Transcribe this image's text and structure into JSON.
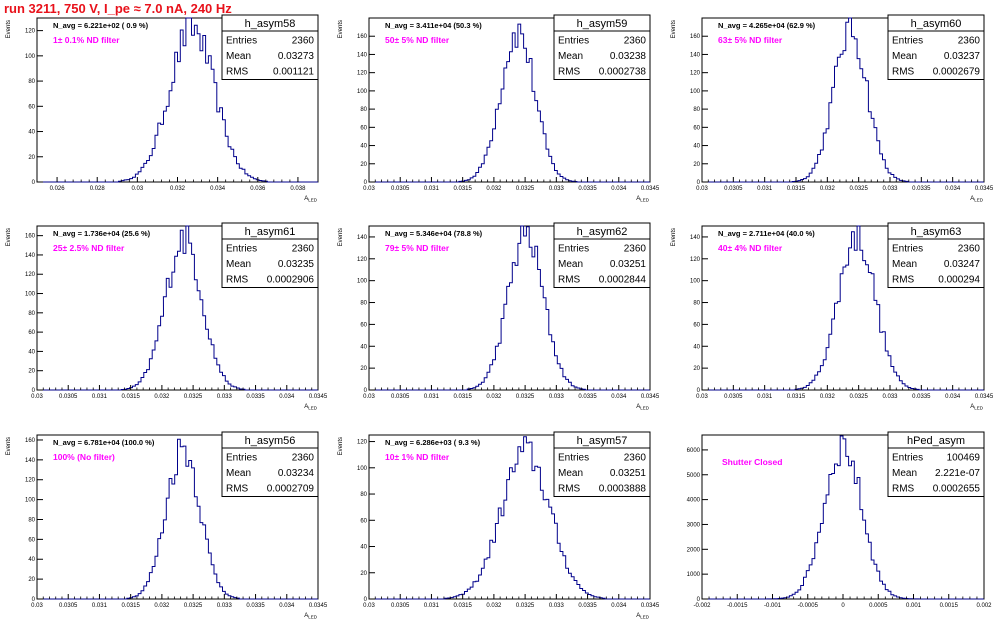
{
  "page": {
    "title": "run 3211,   750 V, I_pe ≈ 7.0 nA, 240 Hz"
  },
  "colors": {
    "histogram": "#00008b",
    "filter_label": "#ff00ff",
    "title": "#e8121b",
    "axes": "#000000"
  },
  "chart_data": [
    {
      "type": "histogram",
      "name": "h_asym58",
      "navg_label": "N_avg = 6.221e+02 ( 0.9 %)",
      "filter_label": "1± 0.1% ND filter",
      "stats": [
        [
          "Entries",
          "2360"
        ],
        [
          "Mean",
          "0.03273"
        ],
        [
          "RMS",
          "0.001121"
        ]
      ],
      "ylabel": "Events",
      "xlabel": "A_LED",
      "xlim": [
        0.025,
        0.039
      ],
      "ylim": [
        0,
        130
      ],
      "xticks": [
        0.026,
        0.028,
        0.03,
        0.032,
        0.034,
        0.036,
        0.038
      ],
      "xtick_labels": [
        "0.026",
        "0.028",
        "0.03",
        "0.032",
        "0.034",
        "0.036",
        "0.038"
      ],
      "yticks": [
        0,
        20,
        40,
        60,
        80,
        100,
        120
      ],
      "ytick_labels": [
        "0",
        "20",
        "40",
        "60",
        "80",
        "100",
        "120"
      ],
      "mean": 0.03273,
      "rms": 0.001121,
      "peak": 122,
      "bins": 100
    },
    {
      "type": "histogram",
      "name": "h_asym59",
      "navg_label": "N_avg = 3.411e+04 (50.3 %)",
      "filter_label": "50± 5% ND filter",
      "stats": [
        [
          "Entries",
          "2360"
        ],
        [
          "Mean",
          "0.03238"
        ],
        [
          "RMS",
          "0.0002738"
        ]
      ],
      "ylabel": "Events",
      "xlabel": "A_LED",
      "xlim": [
        0.03,
        0.0345
      ],
      "ylim": [
        0,
        180
      ],
      "xticks": [
        0.03,
        0.0305,
        0.031,
        0.0315,
        0.032,
        0.0325,
        0.033,
        0.0335,
        0.034,
        0.0345
      ],
      "xtick_labels": [
        "0.03",
        "0.0305",
        "0.031",
        "0.0315",
        "0.032",
        "0.0325",
        "0.033",
        "0.0335",
        "0.034",
        "0.0345"
      ],
      "yticks": [
        0,
        20,
        40,
        60,
        80,
        100,
        120,
        140,
        160
      ],
      "ytick_labels": [
        "0",
        "20",
        "40",
        "60",
        "80",
        "100",
        "120",
        "140",
        "160"
      ],
      "mean": 0.03238,
      "rms": 0.0002738,
      "peak": 165,
      "bins": 100
    },
    {
      "type": "histogram",
      "name": "h_asym60",
      "navg_label": "N_avg = 4.265e+04 (62.9 %)",
      "filter_label": "63± 5% ND filter",
      "stats": [
        [
          "Entries",
          "2360"
        ],
        [
          "Mean",
          "0.03237"
        ],
        [
          "RMS",
          "0.0002679"
        ]
      ],
      "ylabel": "Events",
      "xlabel": "A_LED",
      "xlim": [
        0.03,
        0.0345
      ],
      "ylim": [
        0,
        180
      ],
      "xticks": [
        0.03,
        0.0305,
        0.031,
        0.0315,
        0.032,
        0.0325,
        0.033,
        0.0335,
        0.034,
        0.0345
      ],
      "xtick_labels": [
        "0.03",
        "0.0305",
        "0.031",
        "0.0315",
        "0.032",
        "0.0325",
        "0.033",
        "0.0335",
        "0.034",
        "0.0345"
      ],
      "yticks": [
        0,
        20,
        40,
        60,
        80,
        100,
        120,
        140,
        160
      ],
      "ytick_labels": [
        "0",
        "20",
        "40",
        "60",
        "80",
        "100",
        "120",
        "140",
        "160"
      ],
      "mean": 0.03237,
      "rms": 0.0002679,
      "peak": 168,
      "bins": 100
    },
    {
      "type": "histogram",
      "name": "h_asym61",
      "navg_label": "N_avg = 1.736e+04 (25.6 %)",
      "filter_label": "25± 2.5% ND filter",
      "stats": [
        [
          "Entries",
          "2360"
        ],
        [
          "Mean",
          "0.03235"
        ],
        [
          "RMS",
          "0.0002906"
        ]
      ],
      "ylabel": "Events",
      "xlabel": "A_LED",
      "xlim": [
        0.03,
        0.0345
      ],
      "ylim": [
        0,
        170
      ],
      "xticks": [
        0.03,
        0.0305,
        0.031,
        0.0315,
        0.032,
        0.0325,
        0.033,
        0.0335,
        0.034,
        0.0345
      ],
      "xtick_labels": [
        "0.03",
        "0.0305",
        "0.031",
        "0.0315",
        "0.032",
        "0.0325",
        "0.033",
        "0.0335",
        "0.034",
        "0.0345"
      ],
      "yticks": [
        0,
        20,
        40,
        60,
        80,
        100,
        120,
        140,
        160
      ],
      "ytick_labels": [
        "0",
        "20",
        "40",
        "60",
        "80",
        "100",
        "120",
        "140",
        "160"
      ],
      "mean": 0.03235,
      "rms": 0.0002906,
      "peak": 158,
      "bins": 100
    },
    {
      "type": "histogram",
      "name": "h_asym62",
      "navg_label": "N_avg = 5.346e+04 (78.8 %)",
      "filter_label": "79± 5% ND filter",
      "stats": [
        [
          "Entries",
          "2360"
        ],
        [
          "Mean",
          "0.03251"
        ],
        [
          "RMS",
          "0.0002844"
        ]
      ],
      "ylabel": "Events",
      "xlabel": "A_LED",
      "xlim": [
        0.03,
        0.0345
      ],
      "ylim": [
        0,
        150
      ],
      "xticks": [
        0.03,
        0.0305,
        0.031,
        0.0315,
        0.032,
        0.0325,
        0.033,
        0.0335,
        0.034,
        0.0345
      ],
      "xtick_labels": [
        "0.03",
        "0.0305",
        "0.031",
        "0.0315",
        "0.032",
        "0.0325",
        "0.033",
        "0.0335",
        "0.034",
        "0.0345"
      ],
      "yticks": [
        0,
        20,
        40,
        60,
        80,
        100,
        120,
        140
      ],
      "ytick_labels": [
        "0",
        "20",
        "40",
        "60",
        "80",
        "100",
        "120",
        "140"
      ],
      "mean": 0.03251,
      "rms": 0.0002844,
      "peak": 142,
      "bins": 100
    },
    {
      "type": "histogram",
      "name": "h_asym63",
      "navg_label": "N_avg = 2.711e+04 (40.0 %)",
      "filter_label": "40± 4% ND filter",
      "stats": [
        [
          "Entries",
          "2360"
        ],
        [
          "Mean",
          "0.03247"
        ],
        [
          "RMS",
          "0.000294"
        ]
      ],
      "ylabel": "Events",
      "xlabel": "A_LED",
      "xlim": [
        0.03,
        0.0345
      ],
      "ylim": [
        0,
        150
      ],
      "xticks": [
        0.03,
        0.0305,
        0.031,
        0.0315,
        0.032,
        0.0325,
        0.033,
        0.0335,
        0.034,
        0.0345
      ],
      "xtick_labels": [
        "0.03",
        "0.0305",
        "0.031",
        "0.0315",
        "0.032",
        "0.0325",
        "0.033",
        "0.0335",
        "0.034",
        "0.0345"
      ],
      "yticks": [
        0,
        20,
        40,
        60,
        80,
        100,
        120,
        140
      ],
      "ytick_labels": [
        "0",
        "20",
        "40",
        "60",
        "80",
        "100",
        "120",
        "140"
      ],
      "mean": 0.03247,
      "rms": 0.000294,
      "peak": 142,
      "bins": 100
    },
    {
      "type": "histogram",
      "name": "h_asym56",
      "navg_label": "N_avg = 6.781e+04 (100.0 %)",
      "filter_label": "100% (No filter)",
      "stats": [
        [
          "Entries",
          "2360"
        ],
        [
          "Mean",
          "0.03234"
        ],
        [
          "RMS",
          "0.0002709"
        ]
      ],
      "ylabel": "Events",
      "xlabel": "A_LED",
      "xlim": [
        0.03,
        0.0345
      ],
      "ylim": [
        0,
        165
      ],
      "xticks": [
        0.03,
        0.0305,
        0.031,
        0.0315,
        0.032,
        0.0325,
        0.033,
        0.0335,
        0.034,
        0.0345
      ],
      "xtick_labels": [
        "0.03",
        "0.0305",
        "0.031",
        "0.0315",
        "0.032",
        "0.0325",
        "0.033",
        "0.0335",
        "0.034",
        "0.0345"
      ],
      "yticks": [
        0,
        20,
        40,
        60,
        80,
        100,
        120,
        140,
        160
      ],
      "ytick_labels": [
        "0",
        "20",
        "40",
        "60",
        "80",
        "100",
        "120",
        "140",
        "160"
      ],
      "mean": 0.03234,
      "rms": 0.0002709,
      "peak": 153,
      "bins": 100
    },
    {
      "type": "histogram",
      "name": "h_asym57",
      "navg_label": "N_avg = 6.286e+03 ( 9.3 %)",
      "filter_label": "10± 1% ND filter",
      "stats": [
        [
          "Entries",
          "2360"
        ],
        [
          "Mean",
          "0.03251"
        ],
        [
          "RMS",
          "0.0003888"
        ]
      ],
      "ylabel": "Events",
      "xlabel": "A_LED",
      "xlim": [
        0.03,
        0.0345
      ],
      "ylim": [
        0,
        125
      ],
      "xticks": [
        0.03,
        0.0305,
        0.031,
        0.0315,
        0.032,
        0.0325,
        0.033,
        0.0335,
        0.034,
        0.0345
      ],
      "xtick_labels": [
        "0.03",
        "0.0305",
        "0.031",
        "0.0315",
        "0.032",
        "0.0325",
        "0.033",
        "0.0335",
        "0.034",
        "0.0345"
      ],
      "yticks": [
        0,
        20,
        40,
        60,
        80,
        100,
        120
      ],
      "ytick_labels": [
        "0",
        "20",
        "40",
        "60",
        "80",
        "100",
        "120"
      ],
      "mean": 0.03251,
      "rms": 0.0003888,
      "peak": 112,
      "bins": 100
    },
    {
      "type": "histogram",
      "name": "hPed_asym",
      "navg_label": "",
      "filter_label": "Shutter Closed",
      "stats": [
        [
          "Entries",
          "100469"
        ],
        [
          "Mean",
          "2.221e-07"
        ],
        [
          "RMS",
          "0.0002655"
        ]
      ],
      "ylabel": "",
      "xlabel": "",
      "xlim": [
        -0.002,
        0.002
      ],
      "ylim": [
        0,
        6600
      ],
      "xticks": [
        -0.002,
        -0.0015,
        -0.001,
        -0.0005,
        0,
        0.0005,
        0.001,
        0.0015,
        0.002
      ],
      "xtick_labels": [
        "-0.002",
        "-0.0015",
        "-0.001",
        "-0.0005",
        "0",
        "0.0005",
        "0.001",
        "0.0015",
        "0.002"
      ],
      "yticks": [
        0,
        1000,
        2000,
        3000,
        4000,
        5000,
        6000
      ],
      "ytick_labels": [
        "0",
        "1000",
        "2000",
        "3000",
        "4000",
        "5000",
        "6000"
      ],
      "mean": 2.22e-07,
      "rms": 0.0002655,
      "peak": 6200,
      "bins": 100
    }
  ]
}
